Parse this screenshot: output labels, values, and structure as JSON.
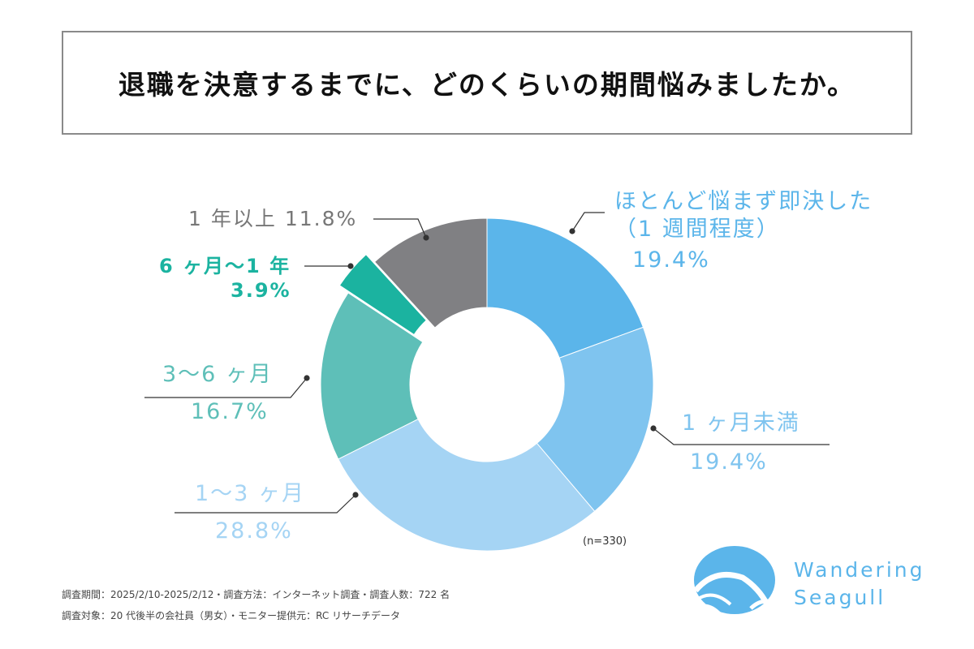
{
  "title": "退職を決意するまでに、どのくらいの期間悩みましたか。",
  "chart_data": {
    "type": "pie",
    "variant": "donut",
    "title": "退職を決意するまでに、どのくらいの期間悩みましたか。",
    "slices": [
      {
        "label": "ほとんど悩まず即決した（1週間程度）",
        "label_line1": "ほとんど悩まず即決した",
        "label_line2": "（1 週間程度）",
        "value": 19.4,
        "value_label": "19.4%",
        "color": "#5bb5ea"
      },
      {
        "label": "1ヶ月未満",
        "label_line1": "1 ヶ月未満",
        "value": 19.4,
        "value_label": "19.4%",
        "color": "#7fc4ef"
      },
      {
        "label": "1〜3ヶ月",
        "label_line1": "1〜3 ヶ月",
        "value": 28.8,
        "value_label": "28.8%",
        "color": "#a5d4f4"
      },
      {
        "label": "3〜6ヶ月",
        "label_line1": "3〜6 ヶ月",
        "value": 16.7,
        "value_label": "16.7%",
        "color": "#5ebfb8"
      },
      {
        "label": "6ヶ月〜1年",
        "label_line1": "6 ヶ月〜1 年",
        "value": 3.9,
        "value_label": "3.9%",
        "color": "#1bb3a0",
        "exploded": true
      },
      {
        "label": "1年以上",
        "label_line1": "1 年以上",
        "value": 11.8,
        "value_label": "11.8%",
        "color": "#808083"
      }
    ],
    "sample_note": "(n=330)"
  },
  "footer": {
    "line1": "調査期間：2025/2/10-2025/2/12・調査方法：インターネット調査・調査人数：722 名",
    "line2": "調査対象：20 代後半の会社員（男女）・モニター提供元：RC リサーチデータ"
  },
  "logo": {
    "line1": "Wandering",
    "line2": "Seagull",
    "color": "#5bb5ea"
  }
}
